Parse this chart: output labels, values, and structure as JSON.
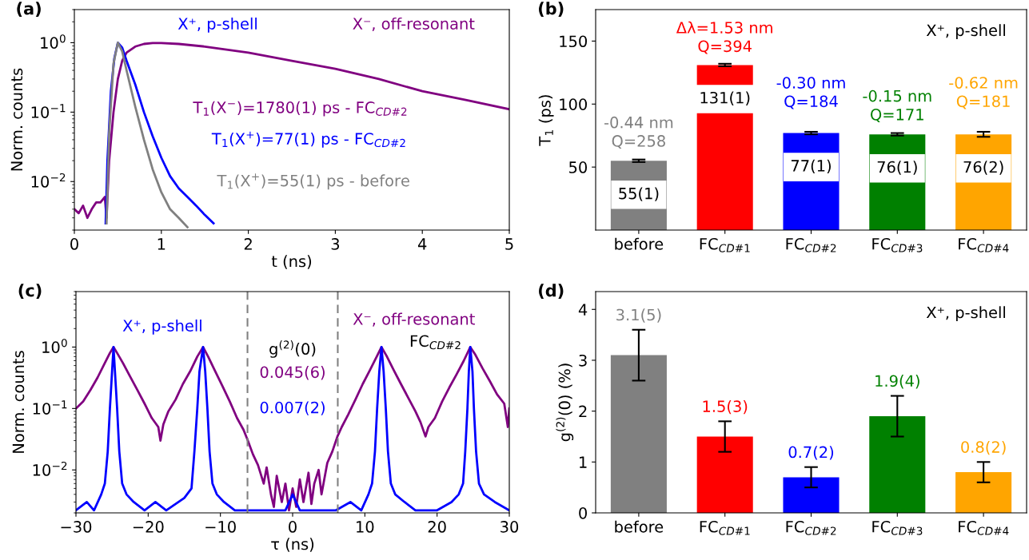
{
  "chart_data": [
    {
      "type": "line",
      "title": "(a)",
      "xlabel": "t (ns)",
      "ylabel": "Norm. counts",
      "log": "y",
      "legend": false,
      "grid": false,
      "xlim": [
        0,
        5
      ],
      "xticks": [
        0,
        1,
        2,
        3,
        4,
        5
      ],
      "ylim": [
        0.002,
        3
      ],
      "yticks": [
        {
          "value": 0.01,
          "label": "10$^{−2}$"
        },
        {
          "value": 0.1,
          "label": "10$^{−1}$"
        },
        {
          "value": 1,
          "label": "10$^{0}$"
        }
      ],
      "series": [
        {
          "name": "X⁻, off-resonant",
          "color": "#800080",
          "x": [
            0,
            0.05,
            0.1,
            0.15,
            0.2,
            0.25,
            0.3,
            0.35,
            0.37,
            0.4,
            0.45,
            0.5,
            0.55,
            0.6,
            0.7,
            0.8,
            0.9,
            1.0,
            1.2,
            1.5,
            2,
            2.5,
            3,
            3.5,
            4,
            4.5,
            5
          ],
          "values": [
            0.004,
            0.0035,
            0.0045,
            0.003,
            0.004,
            0.005,
            0.005,
            0.006,
            0.003,
            0.02,
            0.1,
            0.3,
            0.55,
            0.72,
            0.88,
            0.96,
            0.99,
            0.99,
            0.96,
            0.88,
            0.72,
            0.55,
            0.42,
            0.3,
            0.2,
            0.15,
            0.11
          ]
        },
        {
          "name": "X⁺, p-shell",
          "color": "#0000ff",
          "x": [
            0.36,
            0.38,
            0.42,
            0.46,
            0.5,
            0.55,
            0.6,
            0.7,
            0.8,
            0.9,
            1.0,
            1.1,
            1.2,
            1.3,
            1.4,
            1.5,
            1.6
          ],
          "values": [
            0.0025,
            0.02,
            0.2,
            0.6,
            1.0,
            0.85,
            0.55,
            0.25,
            0.1,
            0.045,
            0.022,
            0.012,
            0.008,
            0.006,
            0.0045,
            0.0033,
            0.0025
          ]
        },
        {
          "color": "#808080",
          "x": [
            0.37,
            0.4,
            0.45,
            0.5,
            0.55,
            0.6,
            0.7,
            0.8,
            0.9,
            1.0,
            1.1,
            1.2,
            1.3
          ],
          "values": [
            0.0025,
            0.05,
            0.5,
            1.0,
            0.75,
            0.4,
            0.12,
            0.04,
            0.015,
            0.007,
            0.004,
            0.003,
            0.0022
          ]
        }
      ],
      "annotations": [
        "T$_{1}$(X$^{−}$)=1780(1) ps - FC$_{CD#2}$",
        "T$_{1}$(X$^{+}$)=77(1) ps - FC$_{CD#2}$",
        "T$_{1}$(X$^{+}$)=55(1) ps - before"
      ]
    },
    {
      "type": "bar",
      "title": "(b)",
      "ylabel": "T$_{1}$ (ps)",
      "categories": [
        "before",
        "FC$_{CD#1}$",
        "FC$_{CD#2}$",
        "FC$_{CD#3}$",
        "FC$_{CD#4}$"
      ],
      "values": [
        55,
        131,
        77,
        76,
        76
      ],
      "errors": [
        1,
        1,
        1,
        1,
        2
      ],
      "colors": [
        "#808080",
        "#ff0000",
        "#0000ff",
        "#008000",
        "#ffa500"
      ],
      "value_labels": [
        "55(1)",
        "131(1)",
        "77(1)",
        "76(1)",
        "76(2)"
      ],
      "ylim": [
        0,
        175
      ],
      "yticks": [
        50,
        100,
        150
      ],
      "grid": false,
      "legend": false,
      "annotations": [
        "-0.44 nm\nQ=258",
        "Δλ=1.53 nm\nQ=394",
        "-0.30 nm\nQ=184",
        "-0.15 nm\nQ=171",
        "-0.62 nm\nQ=181",
        "X⁺, p-shell"
      ]
    },
    {
      "type": "line",
      "title": "(c)",
      "xlabel": "τ (ns)",
      "ylabel": "Norm. counts",
      "log": "y",
      "legend": false,
      "grid": false,
      "xlim": [
        -30,
        30
      ],
      "xticks": [
        {
          "value": -30,
          "label": "−30"
        },
        {
          "value": -20,
          "label": "−20"
        },
        {
          "value": -10,
          "label": "−10"
        },
        0,
        10,
        20,
        30
      ],
      "ylim": [
        0.002,
        8
      ],
      "yticks": [
        {
          "value": 0.01,
          "label": "10$^{−2}$"
        },
        {
          "value": 0.1,
          "label": "10$^{−1}$"
        },
        {
          "value": 1,
          "label": "10$^{0}$"
        }
      ],
      "ref_lines": [
        {
          "axis": "x",
          "value": -6.25,
          "color": "#808080",
          "line_style": "dashed"
        },
        {
          "axis": "x",
          "value": 6.25,
          "color": "#808080",
          "line_style": "dashed"
        }
      ],
      "series": [
        {
          "name": "X⁻, off-resonant",
          "color": "#800080",
          "x": [
            -30,
            -29,
            -28,
            -27,
            -26,
            -25.3,
            -24.8,
            -24.3,
            -23.5,
            -22.5,
            -21.5,
            -20.5,
            -19.5,
            -18.6,
            -18.3,
            -17.9,
            -17.2,
            -16.2,
            -15.2,
            -14.2,
            -13.2,
            -12.4,
            -11.7,
            -10.7,
            -9.7,
            -8.7,
            -7.7,
            -6.8,
            -6.2,
            -5.5,
            -4.8,
            -4.0,
            -3.6,
            -3.0,
            -2.6,
            -2.2,
            -1.5,
            -1.0,
            -0.5,
            0,
            0.5,
            1.0,
            1.5,
            2.2,
            2.6,
            3.0,
            3.6,
            4.0,
            4.8,
            5.5,
            6.2,
            6.8,
            7.7,
            8.7,
            9.7,
            10.7,
            11.7,
            12.3,
            13.0,
            14.0,
            15.0,
            16.0,
            17.0,
            17.7,
            18.4,
            18.8,
            19.7,
            20.7,
            21.7,
            22.7,
            23.7,
            24.6,
            25.3,
            26.3,
            27.3,
            28.3,
            29.3,
            29.8,
            30
          ],
          "values": [
            0.1,
            0.13,
            0.2,
            0.32,
            0.55,
            0.8,
            1.0,
            0.8,
            0.55,
            0.33,
            0.2,
            0.12,
            0.07,
            0.05,
            0.03,
            0.055,
            0.09,
            0.14,
            0.25,
            0.4,
            0.7,
            1.0,
            0.7,
            0.4,
            0.23,
            0.13,
            0.07,
            0.045,
            0.03,
            0.018,
            0.012,
            0.006,
            0.011,
            0.004,
            0.0025,
            0.008,
            0.003,
            0.006,
            0.0022,
            0.005,
            0.0025,
            0.007,
            0.003,
            0.009,
            0.0028,
            0.006,
            0.01,
            0.004,
            0.013,
            0.02,
            0.035,
            0.05,
            0.08,
            0.14,
            0.25,
            0.42,
            0.72,
            1.0,
            0.72,
            0.42,
            0.25,
            0.15,
            0.09,
            0.06,
            0.035,
            0.05,
            0.07,
            0.13,
            0.22,
            0.36,
            0.6,
            1.0,
            0.75,
            0.45,
            0.28,
            0.17,
            0.12,
            0.05,
            0.1
          ]
        },
        {
          "name": "X⁺, p-shell",
          "color": "#0000ff",
          "x": [
            -30,
            -28.5,
            -27.5,
            -26.5,
            -26.0,
            -25.6,
            -25.3,
            -25.0,
            -24.8,
            -24.6,
            -24.3,
            -24.0,
            -23.6,
            -23.0,
            -22.0,
            -20.5,
            -19,
            -17.5,
            -15,
            -14.0,
            -13.6,
            -13.2,
            -12.9,
            -12.4,
            -12.1,
            -11.8,
            -11.5,
            -11.1,
            -10.5,
            -9.5,
            -8,
            -6,
            -1,
            0,
            1,
            6,
            8,
            9.5,
            10.5,
            11.0,
            11.4,
            11.7,
            12.0,
            12.3,
            12.6,
            12.9,
            13.2,
            13.6,
            14.2,
            15.5,
            17,
            20,
            22,
            23,
            23.6,
            23.9,
            24.2,
            24.4,
            24.6,
            24.9,
            25.1,
            25.4,
            25.8,
            26.5,
            28,
            30
          ],
          "values": [
            0.0022,
            0.003,
            0.0022,
            0.004,
            0.006,
            0.02,
            0.1,
            0.4,
            1.0,
            0.4,
            0.1,
            0.02,
            0.006,
            0.004,
            0.003,
            0.0022,
            0.003,
            0.0022,
            0.0035,
            0.005,
            0.02,
            0.1,
            0.4,
            1.0,
            0.4,
            0.1,
            0.02,
            0.006,
            0.004,
            0.003,
            0.0022,
            0.0022,
            0.0022,
            0.004,
            0.0022,
            0.0022,
            0.003,
            0.0022,
            0.004,
            0.006,
            0.02,
            0.1,
            0.4,
            1.0,
            0.4,
            0.1,
            0.02,
            0.006,
            0.004,
            0.003,
            0.0022,
            0.0022,
            0.003,
            0.004,
            0.006,
            0.02,
            0.1,
            0.4,
            1.0,
            0.4,
            0.1,
            0.02,
            0.006,
            0.004,
            0.003,
            0.0022
          ]
        }
      ],
      "annotations": [
        "g$^{(2)}$(0)",
        "0.045(6)",
        "0.007(2)",
        "FC$_{CD#2}$"
      ]
    },
    {
      "type": "bar",
      "title": "(d)",
      "ylabel": "g$^{(2)}$(0) (%)",
      "categories": [
        "before",
        "FC$_{CD#1}$",
        "FC$_{CD#2}$",
        "FC$_{CD#3}$",
        "FC$_{CD#4}$"
      ],
      "values": [
        3.1,
        1.5,
        0.7,
        1.9,
        0.8
      ],
      "errors": [
        0.5,
        0.3,
        0.2,
        0.4,
        0.2
      ],
      "colors": [
        "#808080",
        "#ff0000",
        "#0000ff",
        "#008000",
        "#ffa500"
      ],
      "value_labels": [
        "3.1(5)",
        "1.5(3)",
        "0.7(2)",
        "1.9(4)",
        "0.8(2)"
      ],
      "ylim": [
        0,
        4.35
      ],
      "yticks": [
        0,
        1,
        2,
        3,
        4
      ],
      "grid": false,
      "legend": false,
      "annotations": [
        "X⁺, p-shell"
      ]
    }
  ]
}
